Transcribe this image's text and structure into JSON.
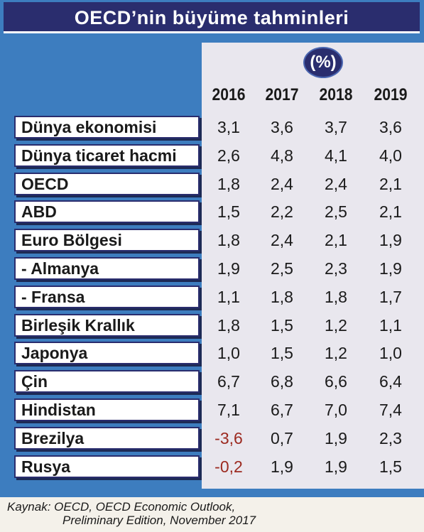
{
  "title": "OECD’nin büyüme tahminleri",
  "unit": "(%)",
  "years": [
    "2016",
    "2017",
    "2018",
    "2019"
  ],
  "rows": [
    {
      "label": "Dünya ekonomisi",
      "values": [
        "3,1",
        "3,6",
        "3,7",
        "3,6"
      ]
    },
    {
      "label": "Dünya ticaret hacmi",
      "values": [
        "2,6",
        "4,8",
        "4,1",
        "4,0"
      ]
    },
    {
      "label": "OECD",
      "values": [
        "1,8",
        "2,4",
        "2,4",
        "2,1"
      ]
    },
    {
      "label": "ABD",
      "values": [
        "1,5",
        "2,2",
        "2,5",
        "2,1"
      ]
    },
    {
      "label": "Euro Bölgesi",
      "values": [
        "1,8",
        "2,4",
        "2,1",
        "1,9"
      ]
    },
    {
      "label": "- Almanya",
      "values": [
        "1,9",
        "2,5",
        "2,3",
        "1,9"
      ]
    },
    {
      "label": "- Fransa",
      "values": [
        "1,1",
        "1,8",
        "1,8",
        "1,7"
      ]
    },
    {
      "label": "Birleşik Krallık",
      "values": [
        "1,8",
        "1,5",
        "1,2",
        "1,1"
      ]
    },
    {
      "label": "Japonya",
      "values": [
        "1,0",
        "1,5",
        "1,2",
        "1,0"
      ]
    },
    {
      "label": "Çin",
      "values": [
        "6,7",
        "6,8",
        "6,6",
        "6,4"
      ]
    },
    {
      "label": "Hindistan",
      "values": [
        "7,1",
        "6,7",
        "7,0",
        "7,4"
      ]
    },
    {
      "label": "Brezilya",
      "values": [
        "-3,6",
        "0,7",
        "1,9",
        "2,3"
      ]
    },
    {
      "label": "Rusya",
      "values": [
        "-0,2",
        "1,9",
        "1,9",
        "1,5"
      ]
    }
  ],
  "source": {
    "line1": "Kaynak: OECD, OECD Economic Outlook,",
    "line2": "Preliminary Edition, November 2017"
  },
  "colors": {
    "frame_blue": "#3d7dbf",
    "navy": "#2a2d6e",
    "negative_red": "#9c2a20"
  }
}
